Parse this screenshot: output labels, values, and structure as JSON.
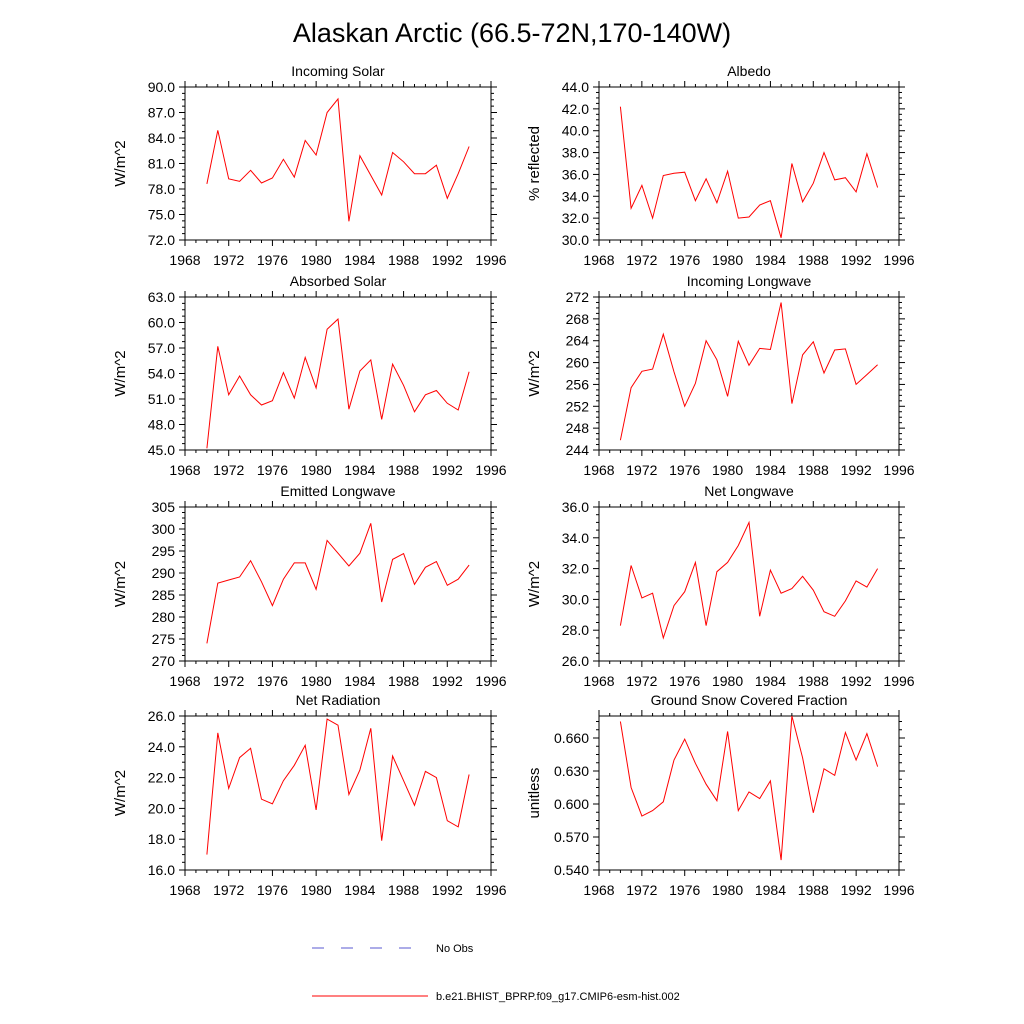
{
  "title": "Alaskan Arctic (66.5-72N,170-140W)",
  "legend": [
    {
      "label": "No Obs",
      "color": "#5a5ad0",
      "dashed": true
    },
    {
      "label": "b.e21.BHIST_BPRP.f09_g17.CMIP6-esm-hist.002",
      "color": "#ff0000",
      "dashed": false
    }
  ],
  "chart_data": [
    {
      "type": "line",
      "title": "Incoming Solar",
      "ylabel": "W/m^2",
      "xlim": [
        1968,
        1996
      ],
      "xticks": [
        1968,
        1972,
        1976,
        1980,
        1984,
        1988,
        1992,
        1996
      ],
      "ylim": [
        72.0,
        90.0
      ],
      "yticks": [
        "72.0",
        "75.0",
        "78.0",
        "81.0",
        "84.0",
        "87.0",
        "90.0"
      ],
      "x": [
        1970,
        1971,
        1972,
        1973,
        1974,
        1975,
        1976,
        1977,
        1978,
        1979,
        1980,
        1981,
        1982,
        1983,
        1984,
        1985,
        1986,
        1987,
        1988,
        1989,
        1990,
        1991,
        1992,
        1993,
        1994
      ],
      "series": [
        {
          "name": "b.e21.BHIST_BPRP.f09_g17.CMIP6-esm-hist.002",
          "values": [
            78.6,
            84.9,
            79.2,
            78.9,
            80.2,
            78.7,
            79.3,
            81.5,
            79.4,
            83.7,
            82.0,
            87.0,
            88.6,
            74.2,
            81.9,
            79.6,
            77.3,
            82.3,
            81.2,
            79.8,
            79.8,
            80.8,
            76.9,
            79.8,
            83.0
          ]
        }
      ]
    },
    {
      "type": "line",
      "title": "Albedo",
      "ylabel": "% reflected",
      "xlim": [
        1968,
        1996
      ],
      "xticks": [
        1968,
        1972,
        1976,
        1980,
        1984,
        1988,
        1992,
        1996
      ],
      "ylim": [
        30.0,
        44.0
      ],
      "yticks": [
        "30.0",
        "32.0",
        "34.0",
        "36.0",
        "38.0",
        "40.0",
        "42.0",
        "44.0"
      ],
      "x": [
        1970,
        1971,
        1972,
        1973,
        1974,
        1975,
        1976,
        1977,
        1978,
        1979,
        1980,
        1981,
        1982,
        1983,
        1984,
        1985,
        1986,
        1987,
        1988,
        1989,
        1990,
        1991,
        1992,
        1993,
        1994
      ],
      "series": [
        {
          "name": "b.e21.BHIST_BPRP.f09_g17.CMIP6-esm-hist.002",
          "values": [
            42.2,
            32.9,
            35.0,
            32.0,
            35.9,
            36.1,
            36.2,
            33.6,
            35.6,
            33.4,
            36.3,
            32.0,
            32.1,
            33.2,
            33.6,
            30.2,
            37.0,
            33.5,
            35.2,
            38.0,
            35.5,
            35.7,
            34.4,
            37.9,
            34.8
          ]
        }
      ]
    },
    {
      "type": "line",
      "title": "Absorbed Solar",
      "ylabel": "W/m^2",
      "xlim": [
        1968,
        1996
      ],
      "xticks": [
        1968,
        1972,
        1976,
        1980,
        1984,
        1988,
        1992,
        1996
      ],
      "ylim": [
        45.0,
        63.0
      ],
      "yticks": [
        "45.0",
        "48.0",
        "51.0",
        "54.0",
        "57.0",
        "60.0",
        "63.0"
      ],
      "x": [
        1970,
        1971,
        1972,
        1973,
        1974,
        1975,
        1976,
        1977,
        1978,
        1979,
        1980,
        1981,
        1982,
        1983,
        1984,
        1985,
        1986,
        1987,
        1988,
        1989,
        1990,
        1991,
        1992,
        1993,
        1994
      ],
      "series": [
        {
          "name": "b.e21.BHIST_BPRP.f09_g17.CMIP6-esm-hist.002",
          "values": [
            45.2,
            57.2,
            51.5,
            53.7,
            51.5,
            50.3,
            50.8,
            54.1,
            51.1,
            55.9,
            52.3,
            59.2,
            60.4,
            49.8,
            54.3,
            55.6,
            48.6,
            55.1,
            52.6,
            49.5,
            51.5,
            52.0,
            50.5,
            49.7,
            54.2
          ]
        }
      ]
    },
    {
      "type": "line",
      "title": "Incoming Longwave",
      "ylabel": "W/m^2",
      "xlim": [
        1968,
        1996
      ],
      "xticks": [
        1968,
        1972,
        1976,
        1980,
        1984,
        1988,
        1992,
        1996
      ],
      "ylim": [
        244,
        272
      ],
      "yticks": [
        "244",
        "248",
        "252",
        "256",
        "260",
        "264",
        "268",
        "272"
      ],
      "x": [
        1970,
        1971,
        1972,
        1973,
        1974,
        1975,
        1976,
        1977,
        1978,
        1979,
        1980,
        1981,
        1982,
        1983,
        1984,
        1985,
        1986,
        1987,
        1988,
        1989,
        1990,
        1991,
        1992,
        1993,
        1994
      ],
      "series": [
        {
          "name": "b.e21.BHIST_BPRP.f09_g17.CMIP6-esm-hist.002",
          "values": [
            245.8,
            255.4,
            258.4,
            258.8,
            265.2,
            258.3,
            252.0,
            256.2,
            264.0,
            260.5,
            253.8,
            263.9,
            259.5,
            262.6,
            262.4,
            271.0,
            252.5,
            261.4,
            263.8,
            258.1,
            262.3,
            262.5,
            256.0,
            257.8,
            259.6
          ]
        }
      ]
    },
    {
      "type": "line",
      "title": "Emitted Longwave",
      "ylabel": "W/m^2",
      "xlim": [
        1968,
        1996
      ],
      "xticks": [
        1968,
        1972,
        1976,
        1980,
        1984,
        1988,
        1992,
        1996
      ],
      "ylim": [
        270,
        305
      ],
      "yticks": [
        "270",
        "275",
        "280",
        "285",
        "290",
        "295",
        "300",
        "305"
      ],
      "x": [
        1970,
        1971,
        1972,
        1973,
        1974,
        1975,
        1976,
        1977,
        1978,
        1979,
        1980,
        1981,
        1982,
        1983,
        1984,
        1985,
        1986,
        1987,
        1988,
        1989,
        1990,
        1991,
        1992,
        1993,
        1994
      ],
      "series": [
        {
          "name": "b.e21.BHIST_BPRP.f09_g17.CMIP6-esm-hist.002",
          "values": [
            274.0,
            287.7,
            288.4,
            289.1,
            292.8,
            288.0,
            282.6,
            288.6,
            292.3,
            292.3,
            286.3,
            297.4,
            294.5,
            291.6,
            294.5,
            301.3,
            283.4,
            293.1,
            294.4,
            287.4,
            291.3,
            292.6,
            287.2,
            288.6,
            291.8
          ]
        }
      ]
    },
    {
      "type": "line",
      "title": "Net Longwave",
      "ylabel": "W/m^2",
      "xlim": [
        1968,
        1996
      ],
      "xticks": [
        1968,
        1972,
        1976,
        1980,
        1984,
        1988,
        1992,
        1996
      ],
      "ylim": [
        26.0,
        36.0
      ],
      "yticks": [
        "26.0",
        "28.0",
        "30.0",
        "32.0",
        "34.0",
        "36.0"
      ],
      "x": [
        1970,
        1971,
        1972,
        1973,
        1974,
        1975,
        1976,
        1977,
        1978,
        1979,
        1980,
        1981,
        1982,
        1983,
        1984,
        1985,
        1986,
        1987,
        1988,
        1989,
        1990,
        1991,
        1992,
        1993,
        1994
      ],
      "series": [
        {
          "name": "b.e21.BHIST_BPRP.f09_g17.CMIP6-esm-hist.002",
          "values": [
            28.3,
            32.2,
            30.1,
            30.4,
            27.5,
            29.6,
            30.5,
            32.4,
            28.3,
            31.8,
            32.4,
            33.5,
            35.0,
            28.9,
            31.9,
            30.4,
            30.7,
            31.5,
            30.6,
            29.2,
            28.9,
            29.9,
            31.2,
            30.8,
            32.0
          ]
        }
      ]
    },
    {
      "type": "line",
      "title": "Net Radiation",
      "ylabel": "W/m^2",
      "xlim": [
        1968,
        1996
      ],
      "xticks": [
        1968,
        1972,
        1976,
        1980,
        1984,
        1988,
        1992,
        1996
      ],
      "ylim": [
        16.0,
        26.0
      ],
      "yticks": [
        "16.0",
        "18.0",
        "20.0",
        "22.0",
        "24.0",
        "26.0"
      ],
      "x": [
        1970,
        1971,
        1972,
        1973,
        1974,
        1975,
        1976,
        1977,
        1978,
        1979,
        1980,
        1981,
        1982,
        1983,
        1984,
        1985,
        1986,
        1987,
        1988,
        1989,
        1990,
        1991,
        1992,
        1993,
        1994
      ],
      "series": [
        {
          "name": "b.e21.BHIST_BPRP.f09_g17.CMIP6-esm-hist.002",
          "values": [
            17.0,
            24.9,
            21.3,
            23.3,
            23.9,
            20.6,
            20.3,
            21.8,
            22.8,
            24.1,
            19.9,
            25.8,
            25.4,
            20.9,
            22.5,
            25.2,
            17.9,
            23.4,
            21.8,
            20.2,
            22.4,
            22.0,
            19.2,
            18.8,
            22.2
          ]
        }
      ]
    },
    {
      "type": "line",
      "title": "Ground Snow Covered Fraction",
      "ylabel": "unitless",
      "xlim": [
        1968,
        1996
      ],
      "xticks": [
        1968,
        1972,
        1976,
        1980,
        1984,
        1988,
        1992,
        1996
      ],
      "ylim": [
        0.54,
        0.68
      ],
      "yticks": [
        "0.540",
        "0.570",
        "0.600",
        "0.630",
        "0.660"
      ],
      "ytick_values": [
        0.54,
        0.57,
        0.6,
        0.63,
        0.66
      ],
      "x": [
        1970,
        1971,
        1972,
        1973,
        1974,
        1975,
        1976,
        1977,
        1978,
        1979,
        1980,
        1981,
        1982,
        1983,
        1984,
        1985,
        1986,
        1987,
        1988,
        1989,
        1990,
        1991,
        1992,
        1993,
        1994
      ],
      "series": [
        {
          "name": "b.e21.BHIST_BPRP.f09_g17.CMIP6-esm-hist.002",
          "values": [
            0.675,
            0.615,
            0.589,
            0.594,
            0.602,
            0.64,
            0.659,
            0.637,
            0.618,
            0.603,
            0.666,
            0.594,
            0.611,
            0.605,
            0.621,
            0.549,
            0.68,
            0.642,
            0.592,
            0.632,
            0.626,
            0.665,
            0.64,
            0.664,
            0.634
          ]
        }
      ]
    }
  ]
}
